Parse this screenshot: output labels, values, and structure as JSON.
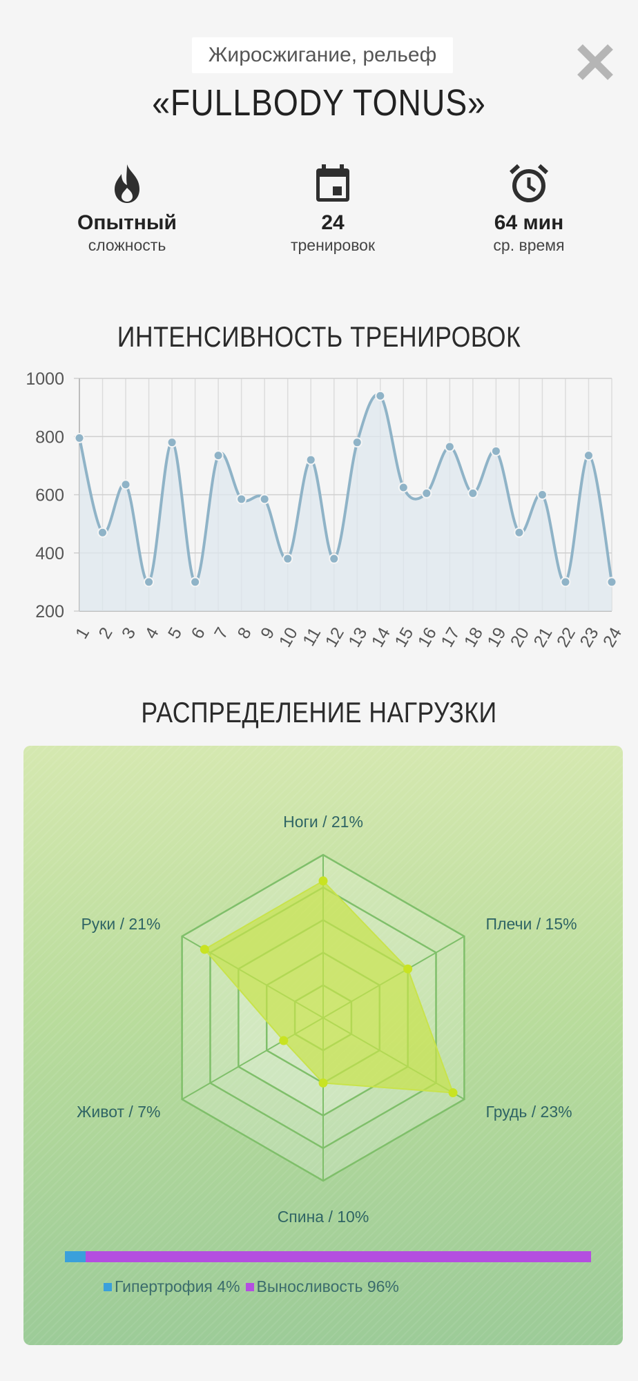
{
  "header": {
    "category": "Жиросжигание, рельеф",
    "title": "«FULLBODY TONUS»"
  },
  "stats": [
    {
      "icon": "flame-icon",
      "value": "Опытный",
      "label": "сложность"
    },
    {
      "icon": "calendar-icon",
      "value": "24",
      "label": "тренировок"
    },
    {
      "icon": "alarm-clock-icon",
      "value": "64 мин",
      "label": "ср. время"
    }
  ],
  "intensity": {
    "title": "ИНТЕНСИВНОСТЬ ТРЕНИРОВОК"
  },
  "load": {
    "title": "РАСПРЕДЕЛЕНИЕ НАГРУЗКИ",
    "goals": [
      {
        "name": "Гипертрофия",
        "label": "Гипертрофия 4%",
        "percent": 4,
        "color": "#3aa0db"
      },
      {
        "name": "Выносливость",
        "label": "Выносливость 96%",
        "percent": 96,
        "color": "#b44ee0"
      }
    ]
  },
  "chart_data": [
    {
      "type": "line",
      "title": "ИНТЕНСИВНОСТЬ ТРЕНИРОВОК",
      "xlabel": "",
      "ylabel": "",
      "x": [
        "1",
        "2",
        "3",
        "4",
        "5",
        "6",
        "7",
        "8",
        "9",
        "10",
        "11",
        "12",
        "13",
        "14",
        "15",
        "16",
        "17",
        "18",
        "19",
        "20",
        "21",
        "22",
        "23",
        "24"
      ],
      "y": [
        795,
        470,
        635,
        300,
        780,
        300,
        735,
        585,
        585,
        380,
        720,
        380,
        780,
        940,
        625,
        605,
        765,
        605,
        750,
        470,
        600,
        300,
        735,
        300
      ],
      "yticks": [
        "200",
        "400",
        "600",
        "800",
        "1000"
      ],
      "ylim": [
        200,
        1000
      ],
      "grid": true,
      "color": "#8fb3c7",
      "fill": "#dde7ee"
    },
    {
      "type": "radar",
      "title": "РАСПРЕДЕЛЕНИЕ НАГРУЗКИ",
      "axes": [
        {
          "name": "Ноги",
          "label": "Ноги / 21%",
          "value": 21
        },
        {
          "name": "Плечи",
          "label": "Плечи / 15%",
          "value": 15
        },
        {
          "name": "Грудь",
          "label": "Грудь / 23%",
          "value": 23
        },
        {
          "name": "Спина",
          "label": "Спина / 10%",
          "value": 10
        },
        {
          "name": "Живот",
          "label": "Живот / 7%",
          "value": 7
        },
        {
          "name": "Руки",
          "label": "Руки / 21%",
          "value": 21
        }
      ],
      "rmax": 25,
      "fill": "#c8e34b",
      "point_color": "#c8e322"
    }
  ]
}
